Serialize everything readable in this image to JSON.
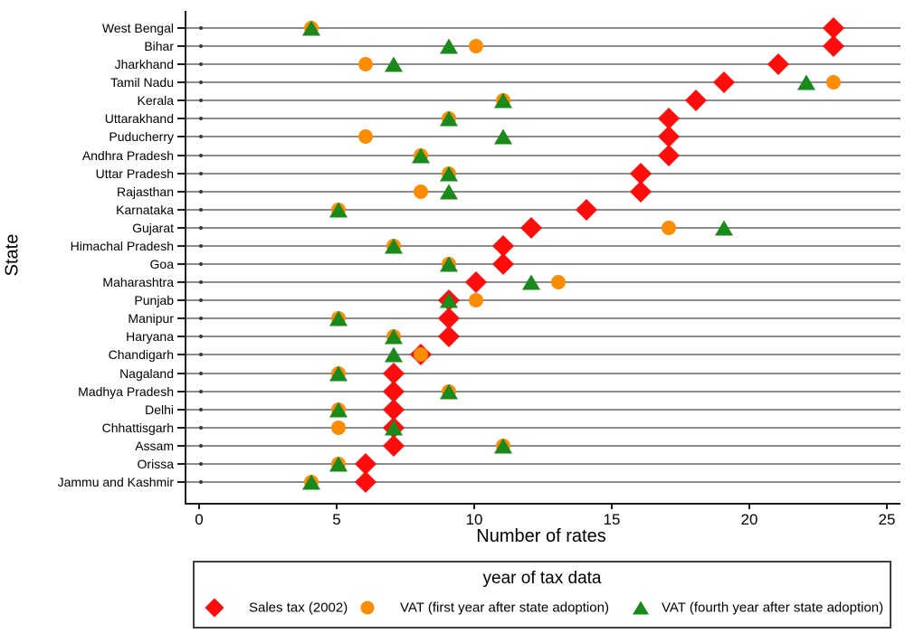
{
  "chart_data": {
    "type": "scatter",
    "subtype": "horizontal-dot-plot",
    "title": "",
    "xlabel": "Number of rates",
    "ylabel": "State",
    "xlim": [
      0,
      25
    ],
    "xticks": [
      0,
      5,
      10,
      15,
      20,
      25
    ],
    "grid": "gray horizontal reference line per category, black dot at x=0",
    "legend_position": "bottom",
    "legend_title": "year of tax data",
    "categories": [
      "West Bengal",
      "Bihar",
      "Jharkhand",
      "Tamil Nadu",
      "Kerala",
      "Uttarakhand",
      "Puducherry",
      "Andhra Pradesh",
      "Uttar Pradesh",
      "Rajasthan",
      "Karnataka",
      "Gujarat",
      "Himachal Pradesh",
      "Goa",
      "Maharashtra",
      "Punjab",
      "Manipur",
      "Haryana",
      "Chandigarh",
      "Nagaland",
      "Madhya Pradesh",
      "Delhi",
      "Chhattisgarh",
      "Assam",
      "Orissa",
      "Jammu and Kashmir"
    ],
    "series": [
      {
        "name": "Sales tax (2002)",
        "marker": "diamond",
        "color": "#fe0d0d",
        "values": [
          23,
          23,
          21,
          19,
          18,
          17,
          17,
          17,
          16,
          16,
          14,
          12,
          11,
          11,
          10,
          9,
          9,
          9,
          8,
          7,
          7,
          7,
          7,
          7,
          6,
          6
        ]
      },
      {
        "name": "VAT (first year after state adoption)",
        "marker": "circle",
        "color": "#ff8c05",
        "values": [
          4,
          10,
          6,
          23,
          11,
          9,
          6,
          8,
          9,
          8,
          5,
          17,
          7,
          9,
          13,
          10,
          5,
          7,
          8,
          5,
          9,
          5,
          5,
          11,
          5,
          4
        ]
      },
      {
        "name": "VAT (fourth year after state adoption)",
        "marker": "triangle",
        "color": "#1a8a1a",
        "values": [
          4,
          9,
          7,
          22,
          11,
          9,
          11,
          8,
          9,
          9,
          5,
          19,
          7,
          9,
          12,
          9,
          5,
          7,
          7,
          5,
          9,
          5,
          7,
          11,
          5,
          4
        ]
      }
    ]
  }
}
